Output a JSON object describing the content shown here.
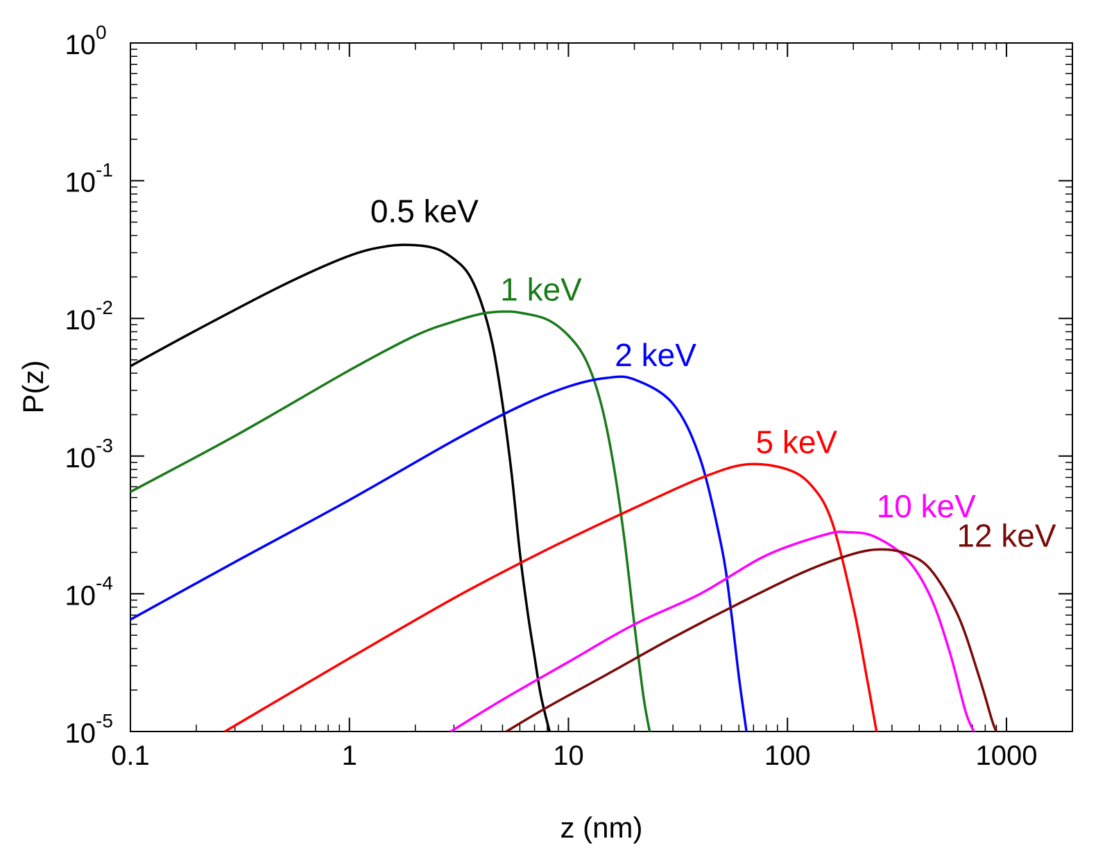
{
  "chart_data": {
    "type": "line",
    "title": "",
    "xlabel": "z (nm)",
    "ylabel": "P(z)",
    "xscale": "log",
    "yscale": "log",
    "xlim": [
      0.1,
      2000
    ],
    "ylim": [
      1e-05,
      1
    ],
    "grid": false,
    "x_ticks": [
      {
        "value": 0.1,
        "label": "0.1"
      },
      {
        "value": 1,
        "label": "1"
      },
      {
        "value": 10,
        "label": "10"
      },
      {
        "value": 100,
        "label": "100"
      },
      {
        "value": 1000,
        "label": "1000"
      }
    ],
    "y_ticks": [
      {
        "value": 1,
        "base": "10",
        "exp": "0"
      },
      {
        "value": 0.1,
        "base": "10",
        "exp": "-1"
      },
      {
        "value": 0.01,
        "base": "10",
        "exp": "-2"
      },
      {
        "value": 0.001,
        "base": "10",
        "exp": "-3"
      },
      {
        "value": 0.0001,
        "base": "10",
        "exp": "-4"
      },
      {
        "value": 1e-05,
        "base": "10",
        "exp": "-5"
      }
    ],
    "series": [
      {
        "name": "0.5 keV",
        "label": "0.5 keV",
        "color": "#000000",
        "x": [
          0.1,
          0.2,
          0.5,
          1,
          1.5,
          2,
          2.5,
          3,
          3.5,
          4,
          4.5,
          5,
          5.5,
          6,
          6.5,
          7,
          7.5,
          8.2
        ],
        "y": [
          0.0045,
          0.0082,
          0.0175,
          0.0285,
          0.0335,
          0.034,
          0.032,
          0.027,
          0.021,
          0.013,
          0.0065,
          0.0024,
          0.00075,
          0.0002,
          7.5e-05,
          3.5e-05,
          1.8e-05,
          1e-05
        ],
        "label_at": [
          2.2,
          0.05
        ]
      },
      {
        "name": "1 keV",
        "label": "1 keV",
        "color": "#1a7a1a",
        "x": [
          0.1,
          0.3,
          1,
          2,
          3,
          4,
          5,
          6,
          8,
          10,
          12,
          14,
          16,
          18,
          20,
          22,
          23.5
        ],
        "y": [
          0.00055,
          0.0014,
          0.0042,
          0.0075,
          0.0095,
          0.0108,
          0.0112,
          0.011,
          0.0098,
          0.0075,
          0.005,
          0.0025,
          0.0009,
          0.00025,
          6e-05,
          1.8e-05,
          1e-05
        ],
        "label_at": [
          7.5,
          0.0135
        ]
      },
      {
        "name": "2 keV",
        "label": "2 keV",
        "color": "#0000ff",
        "x": [
          0.1,
          0.3,
          1,
          3,
          6,
          10,
          15,
          20,
          30,
          40,
          50,
          55,
          60,
          65
        ],
        "y": [
          6.5e-05,
          0.00017,
          0.00048,
          0.0013,
          0.0023,
          0.0032,
          0.0037,
          0.0036,
          0.0024,
          0.00095,
          0.00022,
          8e-05,
          2.5e-05,
          1e-05
        ],
        "label_at": [
          25,
          0.0045
        ]
      },
      {
        "name": "5 keV",
        "label": "5 keV",
        "color": "#ff0000",
        "x": [
          0.27,
          1,
          3,
          6.6,
          10,
          20,
          40,
          65,
          100,
          130,
          160,
          200,
          230,
          255
        ],
        "y": [
          1e-05,
          3.4e-05,
          9.3e-05,
          0.00018,
          0.00025,
          0.00042,
          0.00069,
          0.00087,
          0.0008,
          0.0006,
          0.00033,
          8e-05,
          2.5e-05,
          1e-05
        ],
        "label_at": [
          110,
          0.00105
        ]
      },
      {
        "name": "10 keV",
        "label": "10 keV",
        "color": "#ff00ff",
        "x": [
          2.9,
          5,
          10,
          20,
          40,
          80,
          150,
          190,
          250,
          350,
          450,
          550,
          650,
          710
        ],
        "y": [
          1e-05,
          1.7e-05,
          3.2e-05,
          6e-05,
          0.0001,
          0.00019,
          0.00027,
          0.00028,
          0.00026,
          0.00018,
          9.5e-05,
          3.8e-05,
          1.4e-05,
          1e-05
        ],
        "label_at": [
          430,
          0.00036
        ]
      },
      {
        "name": "12 keV",
        "label": "12 keV",
        "color": "#7a0a0a",
        "x": [
          5.2,
          8,
          15,
          30,
          60,
          120,
          200,
          270,
          350,
          450,
          600,
          750,
          860,
          900
        ],
        "y": [
          1e-05,
          1.5e-05,
          2.6e-05,
          4.8e-05,
          8.5e-05,
          0.000145,
          0.000195,
          0.00021,
          0.000195,
          0.00015,
          7e-05,
          2.5e-05,
          1.2e-05,
          1e-05
        ],
        "label_at": [
          1000,
          0.00022
        ]
      }
    ]
  }
}
